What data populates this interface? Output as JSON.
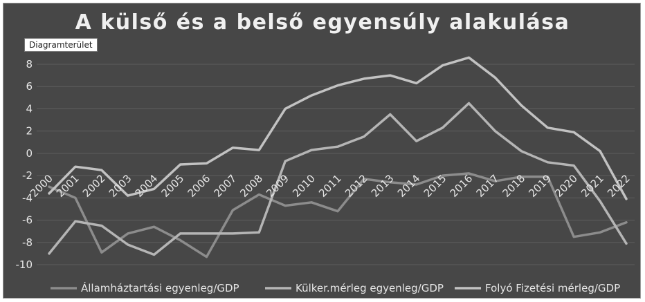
{
  "chart": {
    "title": "A külső és a belső egyensúly alakulása",
    "tooltip": "Diagramterület"
  },
  "chart_data": {
    "type": "line",
    "title": "A külső és a belső egyensúly alakulása",
    "xlabel": "",
    "ylabel": "",
    "x": [
      "2000",
      "2001",
      "2002",
      "2003",
      "2004",
      "2005",
      "2006",
      "2007",
      "2008",
      "2009",
      "2010",
      "2011",
      "2012",
      "2013",
      "2014",
      "2015",
      "2016",
      "2017",
      "2018",
      "2019",
      "2020",
      "2021",
      "2022"
    ],
    "ylim": [
      -10,
      8
    ],
    "yticks": [
      -10,
      -8,
      -6,
      -4,
      -2,
      0,
      2,
      4,
      6,
      8
    ],
    "grid": true,
    "legend_position": "bottom",
    "series": [
      {
        "name": "Államháztartási egyenleg/GDP",
        "color": "#8c8c8c",
        "values": [
          -3.0,
          -4.0,
          -8.9,
          -7.2,
          -6.6,
          -7.8,
          -9.3,
          -5.1,
          -3.7,
          -4.7,
          -4.4,
          -5.2,
          -2.3,
          -2.6,
          -2.8,
          -2.0,
          -1.8,
          -2.5,
          -2.1,
          -2.1,
          -7.5,
          -7.1,
          -6.2
        ]
      },
      {
        "name": "Külker.mérleg egyenleg/GDP",
        "color": "#b5b5b5",
        "values": [
          -9.0,
          -6.1,
          -6.5,
          -8.2,
          -9.1,
          -7.2,
          -7.2,
          -7.2,
          -7.1,
          -0.7,
          0.3,
          0.6,
          1.5,
          3.5,
          1.1,
          2.3,
          4.5,
          2.0,
          0.2,
          -0.8,
          -1.1,
          -4.3,
          -8.1
        ]
      },
      {
        "name": "Folyó Fizetési mérleg/GDP",
        "color": "#c2c2c2",
        "values": [
          -3.6,
          -1.2,
          -1.5,
          -3.8,
          -3.2,
          -1.0,
          -0.9,
          0.5,
          0.3,
          4.0,
          5.2,
          6.1,
          6.7,
          7.0,
          6.3,
          7.9,
          8.6,
          6.8,
          4.3,
          2.3,
          1.9,
          0.2,
          -4.1
        ]
      }
    ]
  }
}
